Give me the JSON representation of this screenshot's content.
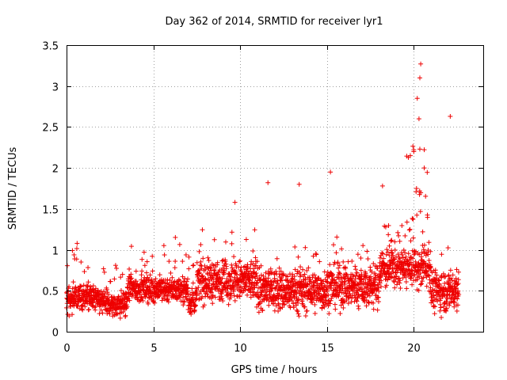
{
  "chart_data": {
    "type": "scatter",
    "title": "Day 362 of 2014, SRMTID for receiver lyr1",
    "xlabel": "GPS time / hours",
    "ylabel": "SRMTID / TECUs",
    "xlim": [
      0,
      24
    ],
    "ylim": [
      0,
      3.5
    ],
    "x_ticks": [
      0,
      5,
      10,
      15,
      20
    ],
    "y_ticks": [
      0,
      0.5,
      1,
      1.5,
      2,
      2.5,
      3,
      3.5
    ],
    "x_tick_labels": [
      "0",
      "5",
      "10",
      "15",
      "20"
    ],
    "y_tick_labels": [
      "0",
      "0.5",
      "1",
      "1.5",
      "2",
      "2.5",
      "3",
      "3.5"
    ],
    "grid": true,
    "marker": "+",
    "color": "#ee0000",
    "series": [
      {
        "name": "SRMTID",
        "x_range": [
          0,
          22.6
        ],
        "typical_y_range": [
          0,
          1.3
        ],
        "notable_points": [
          {
            "x": 9.7,
            "y": 1.58
          },
          {
            "x": 11.6,
            "y": 1.82
          },
          {
            "x": 13.4,
            "y": 1.8
          },
          {
            "x": 15.2,
            "y": 1.95
          },
          {
            "x": 18.2,
            "y": 1.78
          },
          {
            "x": 19.8,
            "y": 2.15
          },
          {
            "x": 20.0,
            "y": 2.2
          },
          {
            "x": 20.2,
            "y": 2.85
          },
          {
            "x": 20.3,
            "y": 2.6
          },
          {
            "x": 20.35,
            "y": 3.1
          },
          {
            "x": 20.4,
            "y": 3.27
          },
          {
            "x": 20.6,
            "y": 2.0
          },
          {
            "x": 22.1,
            "y": 2.63
          }
        ]
      }
    ]
  }
}
